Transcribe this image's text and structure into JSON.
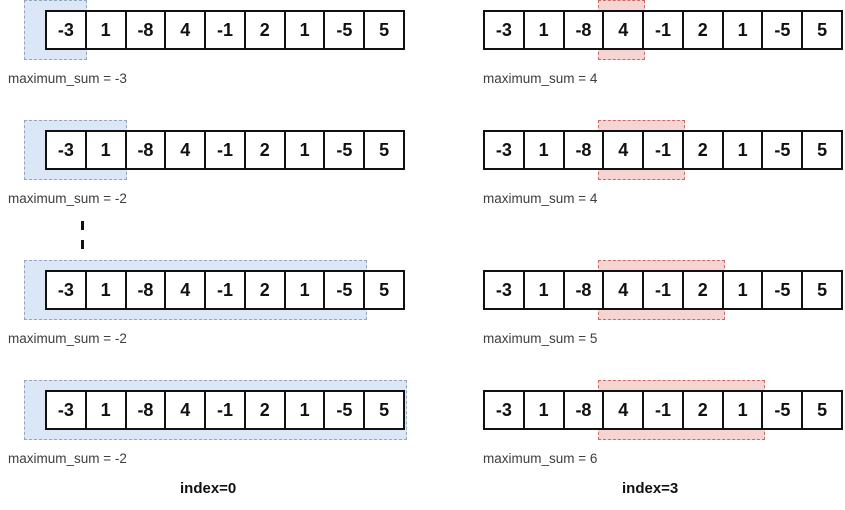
{
  "array_values": [
    "-3",
    "1",
    "-8",
    "4",
    "-1",
    "2",
    "1",
    "-5",
    "5"
  ],
  "colors": {
    "highlight_blue_fill": "#dbe7f6",
    "highlight_blue_border": "#92a6c0",
    "highlight_red_fill": "#f6d4d2",
    "highlight_red_border": "#c96a66"
  },
  "columns": [
    {
      "index_label": "index=0",
      "highlight": "blue",
      "has_ellipsis": true,
      "steps": [
        {
          "label": "maximum_sum = -3",
          "start": 0,
          "end": 0
        },
        {
          "label": "maximum_sum = -2",
          "start": 0,
          "end": 1
        },
        {
          "label": "maximum_sum = -2",
          "start": 0,
          "end": 7
        },
        {
          "label": "maximum_sum = -2",
          "start": 0,
          "end": 8
        }
      ]
    },
    {
      "index_label": "index=3",
      "highlight": "red",
      "has_ellipsis": false,
      "steps": [
        {
          "label": "maximum_sum = 4",
          "start": 3,
          "end": 3
        },
        {
          "label": "maximum_sum = 4",
          "start": 3,
          "end": 4
        },
        {
          "label": "maximum_sum = 5",
          "start": 3,
          "end": 5
        },
        {
          "label": "maximum_sum = 6",
          "start": 3,
          "end": 6
        }
      ]
    }
  ]
}
